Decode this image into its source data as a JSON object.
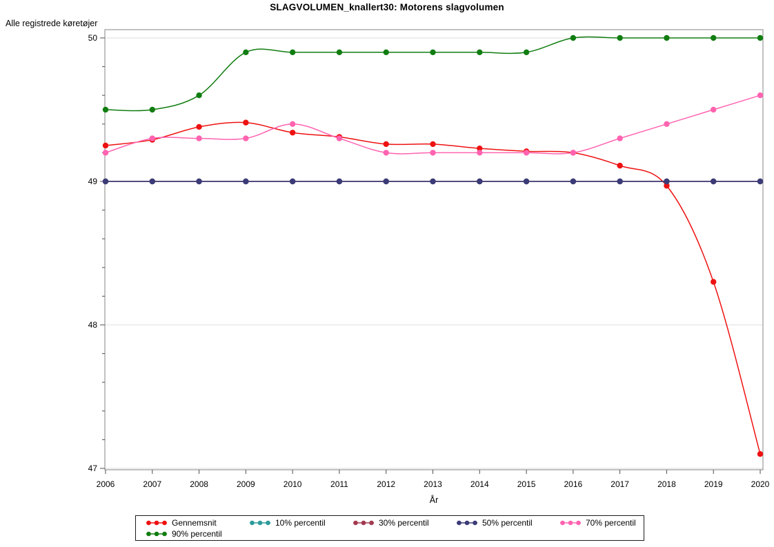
{
  "title": "SLAGVOLUMEN_knallert30: Motorens slagvolumen",
  "chart_data": {
    "type": "line",
    "title": "SLAGVOLUMEN_knallert30: Motorens slagvolumen",
    "ylabel": "Alle registrede køretøjer",
    "xlabel": "År",
    "x": [
      2006,
      2007,
      2008,
      2009,
      2010,
      2011,
      2012,
      2013,
      2014,
      2015,
      2016,
      2017,
      2018,
      2019,
      2020
    ],
    "ylim": [
      47,
      50
    ],
    "yticks": [
      47,
      48,
      49,
      50
    ],
    "y_minor_tick_step": 0.2,
    "grid": "horizontal-major-light",
    "legend_position": "bottom",
    "marker": "filled-circle",
    "smoothing": "spline",
    "frame_color": "#9a9a9a",
    "gridline_color": "#dddddd",
    "tick_color": "#4d4d4d",
    "series": [
      {
        "name": "Gennemsnit",
        "color": "#ee1111",
        "values": [
          49.25,
          49.29,
          49.38,
          49.41,
          49.34,
          49.31,
          49.26,
          49.26,
          49.23,
          49.21,
          49.2,
          49.11,
          48.97,
          48.3,
          47.1
        ]
      },
      {
        "name": "10% percentil",
        "color": "#2e9b9b",
        "values": [
          49.0,
          49.0,
          49.0,
          49.0,
          49.0,
          49.0,
          49.0,
          49.0,
          49.0,
          49.0,
          49.0,
          49.0,
          49.0,
          49.0,
          49.0
        ]
      },
      {
        "name": "30% percentil",
        "color": "#a23a50",
        "values": [
          49.0,
          49.0,
          49.0,
          49.0,
          49.0,
          49.0,
          49.0,
          49.0,
          49.0,
          49.0,
          49.0,
          49.0,
          49.0,
          49.0,
          49.0
        ]
      },
      {
        "name": "50% percentil",
        "color": "#3b3b78",
        "values": [
          49.0,
          49.0,
          49.0,
          49.0,
          49.0,
          49.0,
          49.0,
          49.0,
          49.0,
          49.0,
          49.0,
          49.0,
          49.0,
          49.0,
          49.0
        ]
      },
      {
        "name": "70% percentil",
        "color": "#ff63b0",
        "values": [
          49.2,
          49.3,
          49.3,
          49.3,
          49.4,
          49.3,
          49.2,
          49.2,
          49.2,
          49.2,
          49.2,
          49.3,
          49.4,
          49.5,
          49.6
        ]
      },
      {
        "name": "90% percentil",
        "color": "#107d10",
        "values": [
          49.5,
          49.5,
          49.6,
          49.9,
          49.9,
          49.9,
          49.9,
          49.9,
          49.9,
          49.9,
          50.0,
          50.0,
          50.0,
          50.0,
          50.0
        ]
      }
    ]
  }
}
